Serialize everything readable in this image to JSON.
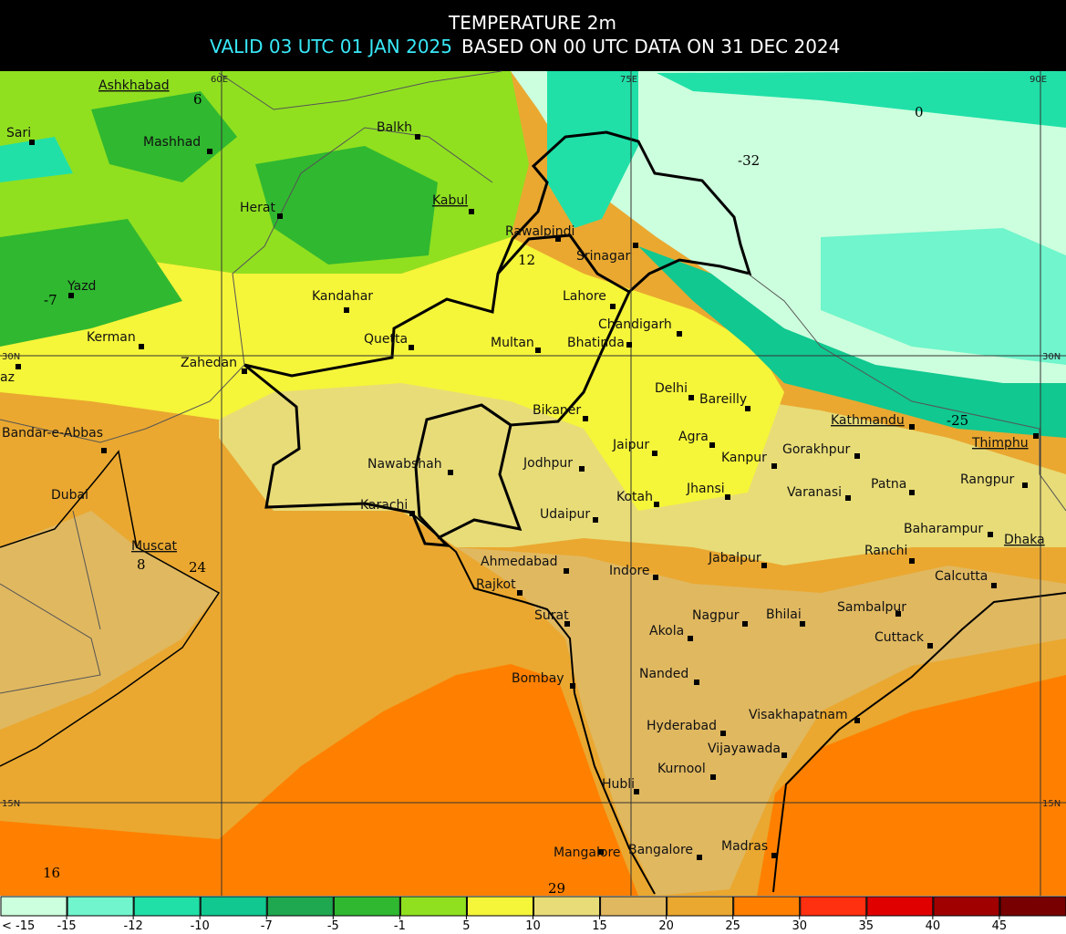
{
  "header": {
    "title": "TEMPERATURE 2m",
    "valid": "VALID 03 UTC 01 JAN 2025",
    "based": "BASED ON 00 UTC DATA ON 31 DEC 2024"
  },
  "grid_labels": {
    "lon": [
      "60E",
      "75E",
      "90E"
    ],
    "lat": [
      "30N",
      "15N"
    ]
  },
  "cities": [
    "Ashkhabad",
    "Sari",
    "Mashhad",
    "Balkh",
    "Herat",
    "Kabul",
    "Yazd",
    "Kandahar",
    "Rawalpindi",
    "Srinagar",
    "Lahore",
    "Kerman",
    "Quetta",
    "Multan",
    "Chandigarh",
    "Bhatinda",
    "Zahedan",
    "Delhi",
    "Bareilly",
    "Kathmandu",
    "Bikaner",
    "Bandar-e-Abbas",
    "Agra",
    "Jaipur",
    "Gorakhpur",
    "Thimphu",
    "Kanpur",
    "Nawabshah",
    "Jodhpur",
    "Rangpur",
    "Jhansi",
    "Dubai",
    "Varanasi",
    "Patna",
    "Kotah",
    "Karachi",
    "Udaipur",
    "Baharampur",
    "Muscat",
    "Dhaka",
    "Ranchi",
    "Jabalpur",
    "Ahmedabad",
    "Indore",
    "Calcutta",
    "Rajkot",
    "Sambalpur",
    "Nagpur",
    "Bhilai",
    "Surat",
    "Akola",
    "Cuttack",
    "Bombay",
    "Nanded",
    "Visakhapatnam",
    "Hyderabad",
    "Vijayawada",
    "Kurnool",
    "Hubli",
    "Mangalore",
    "Bangalore",
    "Madras",
    "az"
  ],
  "field_values": [
    6,
    -7,
    12,
    0,
    -32,
    -25,
    8,
    24,
    16,
    29
  ],
  "legend": {
    "first_label": "< -15",
    "ticks": [
      -15,
      -12,
      -10,
      -7,
      -5,
      -1,
      5,
      10,
      15,
      20,
      25,
      30,
      35,
      40,
      45
    ],
    "colors": [
      "#ccffdd",
      "#70f5cc",
      "#20e0a8",
      "#10c890",
      "#20a850",
      "#30b830",
      "#90e020",
      "#f5f53a",
      "#e8dc78",
      "#e0b860",
      "#eaa830",
      "#ff8000",
      "#ff3010",
      "#e00000",
      "#a00000",
      "#780000"
    ]
  }
}
